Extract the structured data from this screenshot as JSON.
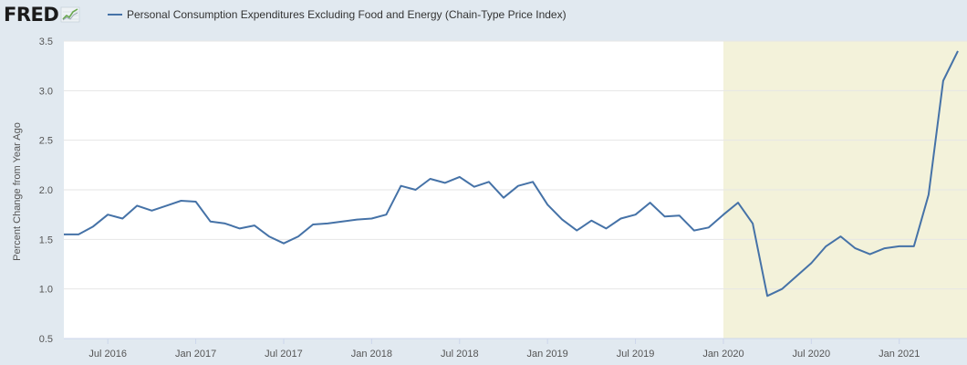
{
  "header": {
    "logo_text": "FRED",
    "logo_icon": "fred-chart-icon"
  },
  "chart_data": {
    "type": "line",
    "title": "",
    "ylabel": "Percent Change from Year Ago",
    "xlabel": "",
    "ylim": [
      0.5,
      3.5
    ],
    "yticks": [
      "0.5",
      "1.0",
      "1.5",
      "2.0",
      "2.5",
      "3.0",
      "3.5"
    ],
    "x_start": "2016-04",
    "x_end": "2021-05",
    "xticks": [
      {
        "date": "2016-07",
        "label": "Jul 2016"
      },
      {
        "date": "2017-01",
        "label": "Jan 2017"
      },
      {
        "date": "2017-07",
        "label": "Jul 2017"
      },
      {
        "date": "2018-01",
        "label": "Jan 2018"
      },
      {
        "date": "2018-07",
        "label": "Jul 2018"
      },
      {
        "date": "2019-01",
        "label": "Jan 2019"
      },
      {
        "date": "2019-07",
        "label": "Jul 2019"
      },
      {
        "date": "2020-01",
        "label": "Jan 2020"
      },
      {
        "date": "2020-07",
        "label": "Jul 2020"
      },
      {
        "date": "2021-01",
        "label": "Jan 2021"
      }
    ],
    "grid": true,
    "legend_position": "top-left",
    "shaded_region": {
      "start": "2020-02",
      "end": "2021-05",
      "color": "#f3f2da"
    },
    "series": [
      {
        "name": "Personal Consumption Expenditures Excluding Food and Energy (Chain-Type Price Index)",
        "color": "#4572a7",
        "x": [
          "2016-04",
          "2016-05",
          "2016-06",
          "2016-07",
          "2016-08",
          "2016-09",
          "2016-10",
          "2016-11",
          "2016-12",
          "2017-01",
          "2017-02",
          "2017-03",
          "2017-04",
          "2017-05",
          "2017-06",
          "2017-07",
          "2017-08",
          "2017-09",
          "2017-10",
          "2017-11",
          "2017-12",
          "2018-01",
          "2018-02",
          "2018-03",
          "2018-04",
          "2018-05",
          "2018-06",
          "2018-07",
          "2018-08",
          "2018-09",
          "2018-10",
          "2018-11",
          "2018-12",
          "2019-01",
          "2019-02",
          "2019-03",
          "2019-04",
          "2019-05",
          "2019-06",
          "2019-07",
          "2019-08",
          "2019-09",
          "2019-10",
          "2019-11",
          "2019-12",
          "2020-01",
          "2020-02",
          "2020-03",
          "2020-04",
          "2020-05",
          "2020-06",
          "2020-07",
          "2020-08",
          "2020-09",
          "2020-10",
          "2020-11",
          "2020-12",
          "2021-01",
          "2021-02",
          "2021-03",
          "2021-04",
          "2021-05"
        ],
        "values": [
          1.55,
          1.55,
          1.63,
          1.75,
          1.71,
          1.84,
          1.79,
          1.84,
          1.89,
          1.88,
          1.68,
          1.66,
          1.61,
          1.64,
          1.53,
          1.46,
          1.53,
          1.65,
          1.66,
          1.68,
          1.7,
          1.71,
          1.75,
          2.04,
          2.0,
          2.11,
          2.07,
          2.13,
          2.03,
          2.08,
          1.92,
          2.04,
          2.08,
          1.85,
          1.7,
          1.59,
          1.69,
          1.61,
          1.71,
          1.75,
          1.87,
          1.73,
          1.74,
          1.59,
          1.62,
          1.75,
          1.87,
          1.66,
          0.93,
          1.0,
          1.13,
          1.26,
          1.43,
          1.53,
          1.41,
          1.35,
          1.41,
          1.43,
          1.43,
          1.95,
          3.1,
          3.4
        ]
      }
    ]
  }
}
